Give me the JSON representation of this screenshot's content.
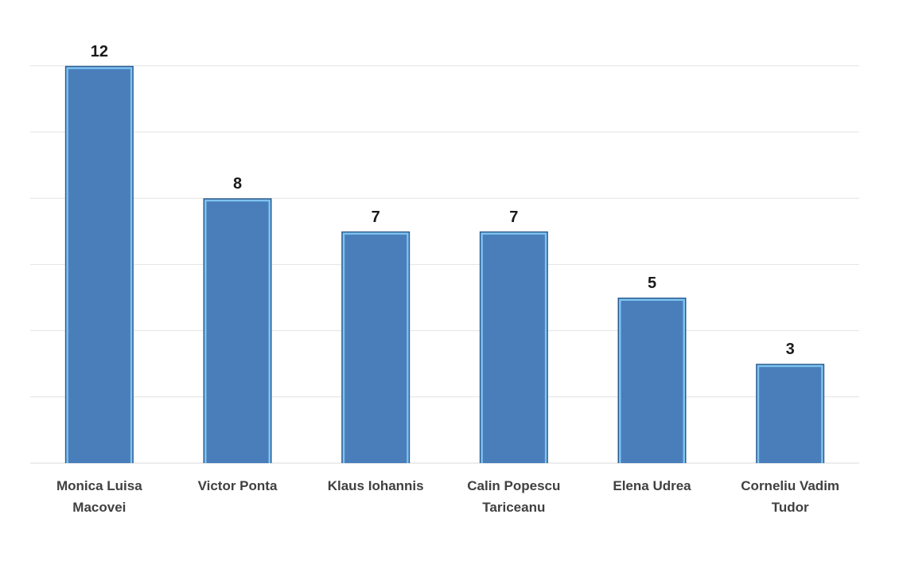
{
  "chart_data": {
    "type": "bar",
    "categories": [
      [
        "Monica Luisa",
        "Macovei"
      ],
      [
        "Victor Ponta"
      ],
      [
        "Klaus Iohannis"
      ],
      [
        "Calin Popescu",
        "Tariceanu"
      ],
      [
        "Elena Udrea"
      ],
      [
        "Corneliu Vadim",
        "Tudor"
      ]
    ],
    "values": [
      12,
      8,
      7,
      7,
      5,
      3
    ],
    "data_labels": [
      "12",
      "8",
      "7",
      "7",
      "5",
      "3"
    ],
    "title": "",
    "xlabel": "",
    "ylabel": "",
    "ylim": [
      0,
      12
    ],
    "grid": true,
    "legend": "none",
    "colors": {
      "bar_fill": "#4a7ebb",
      "bar_edge": "#7ec3f0",
      "bar_outline": "#2d5b8f",
      "gridline": "#e3e3e3",
      "label_text": "#404040",
      "value_text": "#1a1a1a"
    }
  }
}
